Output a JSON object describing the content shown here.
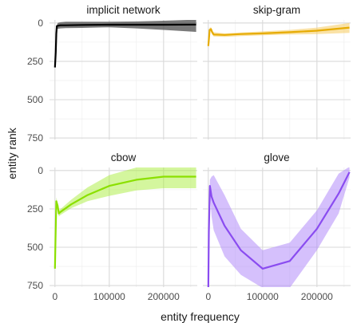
{
  "chart_data": {
    "type": "line",
    "layout": "facet-grid-2x2",
    "xlabel": "entity frequency",
    "ylabel": "entity rank",
    "xlim": [
      -10000,
      262000
    ],
    "ylim": [
      760,
      -20
    ],
    "y_reversed": true,
    "xticks": [
      0,
      100000,
      200000
    ],
    "xtick_labels": [
      "0",
      "100000",
      "200000"
    ],
    "yticks": [
      0,
      250,
      500,
      750
    ],
    "ytick_labels": [
      "0",
      "250",
      "500",
      "750"
    ],
    "grid": true,
    "legend": "none",
    "panels": [
      {
        "title": "implicit network",
        "color": "#000000",
        "fill": "#4d4d4d",
        "fill_opacity": 0.75,
        "points": [
          [
            0,
            290
          ],
          [
            1500,
            190
          ],
          [
            2500,
            70
          ],
          [
            3500,
            20
          ],
          [
            5000,
            18
          ],
          [
            10000,
            15
          ],
          [
            20000,
            15
          ],
          [
            50000,
            13
          ],
          [
            100000,
            11
          ],
          [
            150000,
            11
          ],
          [
            200000,
            11
          ],
          [
            260000,
            10
          ]
        ],
        "band_low": [
          [
            0,
            290
          ],
          [
            1500,
            190
          ],
          [
            2500,
            70
          ],
          [
            3500,
            18
          ],
          [
            5000,
            0
          ],
          [
            10000,
            -5
          ],
          [
            20000,
            -8
          ],
          [
            50000,
            -8
          ],
          [
            100000,
            -8
          ],
          [
            150000,
            -10
          ],
          [
            200000,
            -15
          ],
          [
            260000,
            -22
          ]
        ],
        "band_high": [
          [
            0,
            290
          ],
          [
            1500,
            190
          ],
          [
            2500,
            70
          ],
          [
            3500,
            30
          ],
          [
            5000,
            38
          ],
          [
            10000,
            35
          ],
          [
            20000,
            33
          ],
          [
            50000,
            32
          ],
          [
            100000,
            28
          ],
          [
            150000,
            35
          ],
          [
            200000,
            45
          ],
          [
            260000,
            58
          ]
        ]
      },
      {
        "title": "skip-gram",
        "color": "#E6AB02",
        "fill": "#F7CE6A",
        "fill_opacity": 0.6,
        "points": [
          [
            0,
            150
          ],
          [
            1000,
            110
          ],
          [
            2500,
            45
          ],
          [
            5000,
            40
          ],
          [
            7000,
            60
          ],
          [
            10000,
            75
          ],
          [
            30000,
            78
          ],
          [
            60000,
            72
          ],
          [
            100000,
            68
          ],
          [
            150000,
            60
          ],
          [
            200000,
            50
          ],
          [
            260000,
            30
          ]
        ],
        "band_low": [
          [
            0,
            145
          ],
          [
            1000,
            100
          ],
          [
            2500,
            30
          ],
          [
            5000,
            28
          ],
          [
            7000,
            45
          ],
          [
            10000,
            60
          ],
          [
            30000,
            68
          ],
          [
            60000,
            62
          ],
          [
            100000,
            55
          ],
          [
            150000,
            45
          ],
          [
            200000,
            30
          ],
          [
            260000,
            0
          ]
        ],
        "band_high": [
          [
            0,
            170
          ],
          [
            1000,
            125
          ],
          [
            2500,
            60
          ],
          [
            5000,
            52
          ],
          [
            7000,
            75
          ],
          [
            10000,
            88
          ],
          [
            30000,
            90
          ],
          [
            60000,
            85
          ],
          [
            100000,
            80
          ],
          [
            150000,
            75
          ],
          [
            200000,
            72
          ],
          [
            260000,
            65
          ]
        ]
      },
      {
        "title": "cbow",
        "color": "#8BE000",
        "fill": "#A9EE3D",
        "fill_opacity": 0.5,
        "points": [
          [
            0,
            640
          ],
          [
            1000,
            450
          ],
          [
            2500,
            200
          ],
          [
            5000,
            230
          ],
          [
            7000,
            280
          ],
          [
            10000,
            270
          ],
          [
            30000,
            220
          ],
          [
            60000,
            160
          ],
          [
            100000,
            100
          ],
          [
            150000,
            60
          ],
          [
            200000,
            40
          ],
          [
            260000,
            40
          ]
        ],
        "band_low": [
          [
            0,
            620
          ],
          [
            1000,
            410
          ],
          [
            2500,
            175
          ],
          [
            5000,
            210
          ],
          [
            7000,
            260
          ],
          [
            10000,
            252
          ],
          [
            30000,
            190
          ],
          [
            60000,
            110
          ],
          [
            100000,
            30
          ],
          [
            150000,
            -20
          ],
          [
            200000,
            -25
          ],
          [
            260000,
            -25
          ]
        ],
        "band_high": [
          [
            0,
            660
          ],
          [
            1000,
            480
          ],
          [
            2500,
            225
          ],
          [
            5000,
            250
          ],
          [
            7000,
            300
          ],
          [
            10000,
            290
          ],
          [
            30000,
            245
          ],
          [
            60000,
            200
          ],
          [
            100000,
            165
          ],
          [
            150000,
            130
          ],
          [
            200000,
            115
          ],
          [
            260000,
            115
          ]
        ]
      },
      {
        "title": "glove",
        "color": "#8A4CF0",
        "fill": "#B28CFA",
        "fill_opacity": 0.55,
        "points": [
          [
            0,
            780
          ],
          [
            1000,
            400
          ],
          [
            3000,
            100
          ],
          [
            6000,
            170
          ],
          [
            10000,
            210
          ],
          [
            30000,
            360
          ],
          [
            60000,
            520
          ],
          [
            100000,
            640
          ],
          [
            150000,
            590
          ],
          [
            200000,
            380
          ],
          [
            240000,
            150
          ],
          [
            260000,
            10
          ]
        ],
        "band_low": [
          [
            0,
            780
          ],
          [
            1000,
            360
          ],
          [
            3000,
            60
          ],
          [
            6000,
            40
          ],
          [
            10000,
            30
          ],
          [
            30000,
            160
          ],
          [
            60000,
            380
          ],
          [
            100000,
            520
          ],
          [
            150000,
            470
          ],
          [
            200000,
            260
          ],
          [
            240000,
            20
          ],
          [
            260000,
            -25
          ]
        ],
        "band_high": [
          [
            0,
            780
          ],
          [
            1000,
            440
          ],
          [
            3000,
            140
          ],
          [
            6000,
            300
          ],
          [
            10000,
            390
          ],
          [
            30000,
            560
          ],
          [
            60000,
            680
          ],
          [
            100000,
            765
          ],
          [
            150000,
            765
          ],
          [
            200000,
            520
          ],
          [
            240000,
            280
          ],
          [
            260000,
            45
          ]
        ]
      }
    ]
  }
}
